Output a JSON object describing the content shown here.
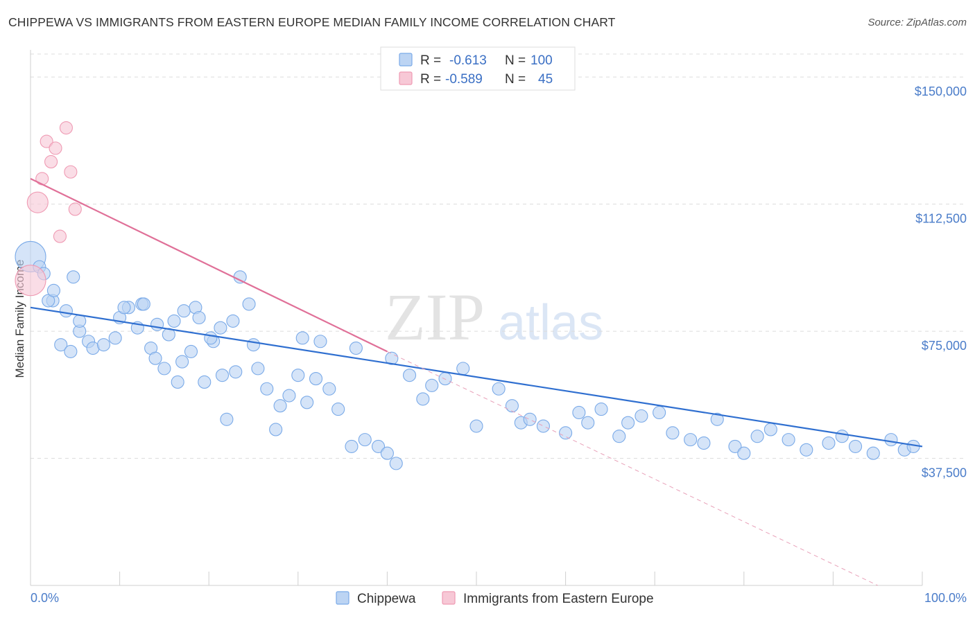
{
  "title": "CHIPPEWA VS IMMIGRANTS FROM EASTERN EUROPE MEDIAN FAMILY INCOME CORRELATION CHART",
  "source": "Source: ZipAtlas.com",
  "watermark": {
    "zip": "ZIP",
    "atlas": "atlas"
  },
  "legend": {
    "r_label": "R =",
    "n_label": "N =",
    "rows": [
      {
        "r": "-0.613",
        "n": "100"
      },
      {
        "r": "-0.589",
        "n": "45"
      }
    ]
  },
  "chart_data": {
    "type": "scatter",
    "title": "CHIPPEWA VS IMMIGRANTS FROM EASTERN EUROPE MEDIAN FAMILY INCOME CORRELATION CHART",
    "xlabel": "",
    "ylabel": "Median Family Income",
    "xlim": [
      0,
      100
    ],
    "ylim": [
      0,
      158000
    ],
    "x_tick_labels": [
      "0.0%",
      "100.0%"
    ],
    "y_ticks": [
      37500,
      75000,
      112500,
      150000
    ],
    "y_tick_labels": [
      "$37,500",
      "$75,000",
      "$112,500",
      "$150,000"
    ],
    "series": [
      {
        "name": "Chippewa",
        "color": "#7aaae8",
        "fill": "#bcd4f3",
        "trend": {
          "x0": 0,
          "y0": 82000,
          "x1": 100,
          "y1": 41000,
          "color": "#2f6fd0"
        },
        "points": [
          [
            0.0,
            97,
            3
          ],
          [
            1.0,
            94,
            1
          ],
          [
            1.5,
            92,
            1
          ],
          [
            2.5,
            84,
            1
          ],
          [
            2.0,
            84,
            1
          ],
          [
            2.6,
            87,
            1
          ],
          [
            4.0,
            81,
            1
          ],
          [
            3.4,
            71,
            1
          ],
          [
            4.5,
            69,
            1
          ],
          [
            5.5,
            75,
            1
          ],
          [
            4.8,
            91,
            1
          ],
          [
            5.5,
            78,
            1
          ],
          [
            6.5,
            72,
            1
          ],
          [
            7.0,
            70,
            1
          ],
          [
            8.2,
            71,
            1
          ],
          [
            9.5,
            73,
            1
          ],
          [
            10.0,
            79,
            1
          ],
          [
            11.0,
            82,
            1
          ],
          [
            12.5,
            83,
            1
          ],
          [
            13.5,
            70,
            1
          ],
          [
            14.0,
            67,
            1
          ],
          [
            15.0,
            64,
            1
          ],
          [
            15.5,
            74,
            1
          ],
          [
            16.5,
            60,
            1
          ],
          [
            17.0,
            66,
            1
          ],
          [
            18.0,
            69,
            1
          ],
          [
            18.5,
            82,
            1
          ],
          [
            19.5,
            60,
            1
          ],
          [
            20.5,
            72,
            1
          ],
          [
            21.5,
            62,
            1
          ],
          [
            22.0,
            49,
            1
          ],
          [
            23.0,
            63,
            1
          ],
          [
            23.5,
            91,
            1
          ],
          [
            24.5,
            83,
            1
          ],
          [
            25.0,
            71,
            1
          ],
          [
            25.5,
            64,
            1
          ],
          [
            26.5,
            58,
            1
          ],
          [
            27.5,
            46,
            1
          ],
          [
            28.0,
            53,
            1
          ],
          [
            29.0,
            56,
            1
          ],
          [
            30.0,
            62,
            1
          ],
          [
            31.0,
            54,
            1
          ],
          [
            32.0,
            61,
            1
          ],
          [
            33.5,
            58,
            1
          ],
          [
            34.5,
            52,
            1
          ],
          [
            36.0,
            41,
            1
          ],
          [
            37.5,
            43,
            1
          ],
          [
            39.0,
            41,
            1
          ],
          [
            40.0,
            39,
            1
          ],
          [
            41.0,
            36,
            1
          ],
          [
            10.5,
            82,
            1
          ],
          [
            12.0,
            76,
            1
          ],
          [
            12.7,
            83,
            1
          ],
          [
            14.2,
            77,
            1
          ],
          [
            16.1,
            78,
            1
          ],
          [
            17.2,
            81,
            1
          ],
          [
            18.9,
            79,
            1
          ],
          [
            20.2,
            73,
            1
          ],
          [
            21.3,
            76,
            1
          ],
          [
            22.7,
            78,
            1
          ],
          [
            30.5,
            73,
            1
          ],
          [
            32.5,
            72,
            1
          ],
          [
            36.5,
            70,
            1
          ],
          [
            40.5,
            67,
            1
          ],
          [
            42.5,
            62,
            1
          ],
          [
            44.0,
            55,
            1
          ],
          [
            45.0,
            59,
            1
          ],
          [
            46.5,
            61,
            1
          ],
          [
            48.5,
            64,
            1
          ],
          [
            50.0,
            47,
            1
          ],
          [
            52.5,
            58,
            1
          ],
          [
            54.0,
            53,
            1
          ],
          [
            55.0,
            48,
            1
          ],
          [
            56.0,
            49,
            1
          ],
          [
            57.5,
            47,
            1
          ],
          [
            60.0,
            45,
            1
          ],
          [
            61.5,
            51,
            1
          ],
          [
            62.5,
            48,
            1
          ],
          [
            64.0,
            52,
            1
          ],
          [
            66.0,
            44,
            1
          ],
          [
            67.0,
            48,
            1
          ],
          [
            68.5,
            50,
            1
          ],
          [
            70.5,
            51,
            1
          ],
          [
            72.0,
            45,
            1
          ],
          [
            74.0,
            43,
            1
          ],
          [
            75.5,
            42,
            1
          ],
          [
            77.0,
            49,
            1
          ],
          [
            79.0,
            41,
            1
          ],
          [
            80.0,
            39,
            1
          ],
          [
            81.5,
            44,
            1
          ],
          [
            83.0,
            46,
            1
          ],
          [
            85.0,
            43,
            1
          ],
          [
            87.0,
            40,
            1
          ],
          [
            89.5,
            42,
            1
          ],
          [
            91.0,
            44,
            1
          ],
          [
            92.5,
            41,
            1
          ],
          [
            94.5,
            39,
            1
          ],
          [
            96.5,
            43,
            1
          ],
          [
            98.0,
            40,
            1
          ],
          [
            99.0,
            41,
            1
          ]
        ]
      },
      {
        "name": "Immigrants from Eastern Europe",
        "color": "#ef9ab3",
        "fill": "#f7c8d6",
        "trend": {
          "x0": 0,
          "y0": 120000,
          "x1": 40,
          "y1": 69000,
          "color": "#e07098"
        },
        "trend_extension": {
          "x0": 40,
          "y0": 69000,
          "x1": 95,
          "y1": 0
        },
        "points": [
          [
            0.0,
            90,
            3
          ],
          [
            0.8,
            113,
            2
          ],
          [
            1.3,
            120,
            1
          ],
          [
            1.8,
            131,
            1
          ],
          [
            2.3,
            125,
            1
          ],
          [
            2.8,
            129,
            1
          ],
          [
            3.3,
            103,
            1
          ],
          [
            4.0,
            135,
            1
          ],
          [
            4.5,
            122,
            1
          ],
          [
            5.0,
            111,
            1
          ]
        ]
      }
    ]
  },
  "bottom_legend": [
    {
      "label": "Chippewa"
    },
    {
      "label": "Immigrants from Eastern Europe"
    }
  ]
}
